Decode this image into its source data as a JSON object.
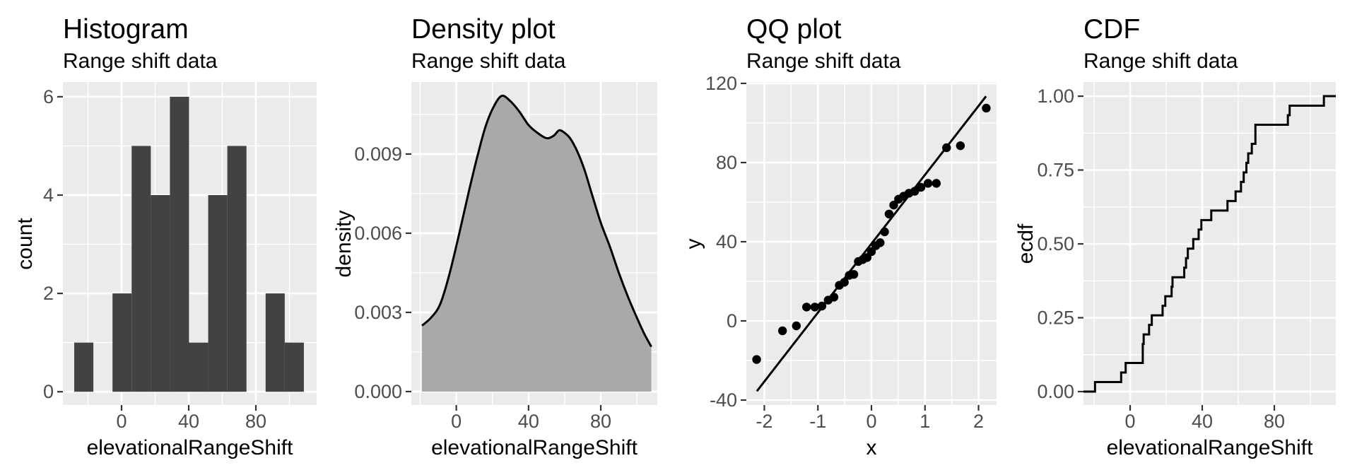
{
  "page": {
    "background": "#ffffff"
  },
  "style": {
    "panel_bg": "#EBEBEB",
    "grid_major_color": "#FFFFFF",
    "grid_minor_color": "#FFFFFF",
    "bar_fill": "#424242",
    "density_fill": "#A9A9A9",
    "geom_stroke": "#000000",
    "tick_mark_color": "#333333",
    "tick_label_color": "#4D4D4D",
    "title_color": "#000000"
  },
  "chart_data": [
    {
      "type": "bar",
      "title": "Histogram",
      "subtitle": "Range shift data",
      "xlabel": "elevationalRangeShift",
      "ylabel": "count",
      "xlim": [
        -34.95,
        116.2
      ],
      "ylim": [
        -0.27,
        6.3
      ],
      "grid": true,
      "x_ticks": [
        {
          "v": 0,
          "label": "0"
        },
        {
          "v": 40,
          "label": "40"
        },
        {
          "v": 80,
          "label": "80"
        }
      ],
      "y_ticks": [
        {
          "v": 0,
          "label": "0"
        },
        {
          "v": 2,
          "label": "2"
        },
        {
          "v": 4,
          "label": "4"
        },
        {
          "v": 6,
          "label": "6"
        }
      ],
      "x_minor": [
        -20,
        20,
        60,
        100
      ],
      "y_minor": [
        1,
        3,
        5
      ],
      "bins": {
        "start": -28.2,
        "binwidth": 11.4,
        "counts": [
          1,
          0,
          2,
          5,
          4,
          6,
          1,
          4,
          5,
          0,
          2,
          1
        ]
      }
    },
    {
      "type": "area",
      "title": "Density plot",
      "subtitle": "Range shift data",
      "xlabel": "elevationalRangeShift",
      "ylabel": "density",
      "xlim": [
        -24.9,
        111.3
      ],
      "ylim": [
        -0.00051,
        0.01173
      ],
      "grid": true,
      "x_ticks": [
        {
          "v": 0,
          "label": "0"
        },
        {
          "v": 40,
          "label": "40"
        },
        {
          "v": 80,
          "label": "80"
        }
      ],
      "y_ticks": [
        {
          "v": 0,
          "label": "0.000"
        },
        {
          "v": 0.003,
          "label": "0.003"
        },
        {
          "v": 0.006,
          "label": "0.006"
        },
        {
          "v": 0.009,
          "label": "0.009"
        }
      ],
      "x_minor": [
        -20,
        20,
        60,
        100
      ],
      "y_minor": [
        0.0015,
        0.0045,
        0.0075,
        0.0105
      ],
      "points": [
        [
          -19,
          0.0025
        ],
        [
          -14,
          0.0028
        ],
        [
          -9,
          0.0033
        ],
        [
          -4,
          0.0044
        ],
        [
          2,
          0.0061
        ],
        [
          7,
          0.0076
        ],
        [
          12,
          0.009
        ],
        [
          16,
          0.01
        ],
        [
          20,
          0.0107
        ],
        [
          25,
          0.0112
        ],
        [
          30,
          0.011
        ],
        [
          35,
          0.0106
        ],
        [
          40,
          0.0101
        ],
        [
          45,
          0.0098
        ],
        [
          50,
          0.0096
        ],
        [
          54,
          0.0097
        ],
        [
          57,
          0.0099
        ],
        [
          60,
          0.0098
        ],
        [
          63,
          0.0096
        ],
        [
          67,
          0.0091
        ],
        [
          71,
          0.0084
        ],
        [
          75,
          0.0075
        ],
        [
          80,
          0.0064
        ],
        [
          85,
          0.0055
        ],
        [
          90,
          0.0045
        ],
        [
          95,
          0.0036
        ],
        [
          100,
          0.0028
        ],
        [
          104,
          0.0022
        ],
        [
          108,
          0.0017
        ]
      ]
    },
    {
      "type": "scatter",
      "title": "QQ plot",
      "subtitle": "Range shift data",
      "xlabel": "x",
      "ylabel": "y",
      "xlim": [
        -2.336,
        2.336
      ],
      "ylim": [
        -42.5,
        120.7
      ],
      "grid": true,
      "x_ticks": [
        {
          "v": -2,
          "label": "-2"
        },
        {
          "v": -1,
          "label": "-1"
        },
        {
          "v": 0,
          "label": "0"
        },
        {
          "v": 1,
          "label": "1"
        },
        {
          "v": 2,
          "label": "2"
        }
      ],
      "y_ticks": [
        {
          "v": -40,
          "label": "-40"
        },
        {
          "v": 0,
          "label": "0"
        },
        {
          "v": 40,
          "label": "40"
        },
        {
          "v": 80,
          "label": "80"
        },
        {
          "v": 120,
          "label": "120"
        }
      ],
      "x_minor": [
        -1.5,
        -0.5,
        0.5,
        1.5
      ],
      "y_minor": [
        -20,
        20,
        60,
        100
      ],
      "points": [
        [
          -2.144,
          -19.5
        ],
        [
          -1.661,
          -5
        ],
        [
          -1.402,
          -2.5
        ],
        [
          -1.212,
          7
        ],
        [
          -1.057,
          7
        ],
        [
          -0.925,
          7.5
        ],
        [
          -0.808,
          10.5
        ],
        [
          -0.7,
          12
        ],
        [
          -0.6,
          18
        ],
        [
          -0.506,
          19.5
        ],
        [
          -0.416,
          23
        ],
        [
          -0.329,
          23.5
        ],
        [
          -0.245,
          30
        ],
        [
          -0.162,
          31
        ],
        [
          -0.081,
          32
        ],
        [
          0,
          35
        ],
        [
          0.081,
          38
        ],
        [
          0.162,
          39.5
        ],
        [
          0.245,
          45
        ],
        [
          0.329,
          54
        ],
        [
          0.416,
          58.5
        ],
        [
          0.506,
          61.5
        ],
        [
          0.6,
          63
        ],
        [
          0.7,
          64.5
        ],
        [
          0.808,
          65.5
        ],
        [
          0.925,
          67.5
        ],
        [
          1.057,
          69.5
        ],
        [
          1.212,
          69.5
        ],
        [
          1.402,
          87.5
        ],
        [
          1.661,
          88.5
        ],
        [
          2.144,
          107.5
        ]
      ],
      "line": {
        "x1": -2.14,
        "y1": -35.5,
        "x2": 2.14,
        "y2": 113.5
      }
    },
    {
      "type": "line",
      "title": "CDF",
      "subtitle": "Range shift data",
      "xlabel": "elevationalRangeShift",
      "ylabel": "ecdf",
      "xlim": [
        -25.9,
        114.1
      ],
      "ylim": [
        -0.0455,
        1.048
      ],
      "grid": true,
      "x_ticks": [
        {
          "v": 0,
          "label": "0"
        },
        {
          "v": 40,
          "label": "40"
        },
        {
          "v": 80,
          "label": "80"
        }
      ],
      "y_ticks": [
        {
          "v": 0,
          "label": "0.00"
        },
        {
          "v": 0.25,
          "label": "0.25"
        },
        {
          "v": 0.5,
          "label": "0.50"
        },
        {
          "v": 0.75,
          "label": "0.75"
        },
        {
          "v": 1,
          "label": "1.00"
        }
      ],
      "x_minor": [
        -20,
        20,
        60,
        100
      ],
      "y_minor": [
        0.125,
        0.375,
        0.625,
        0.875
      ],
      "values": [
        -19.5,
        -5,
        -2.5,
        7,
        7,
        7.5,
        10.5,
        12,
        18,
        19.5,
        23,
        23.5,
        30,
        31,
        32,
        35,
        38,
        39.5,
        45,
        54,
        58.5,
        61.5,
        63,
        64.5,
        65.5,
        67.5,
        69.5,
        69.5,
        87.5,
        88.5,
        107.5
      ]
    }
  ]
}
